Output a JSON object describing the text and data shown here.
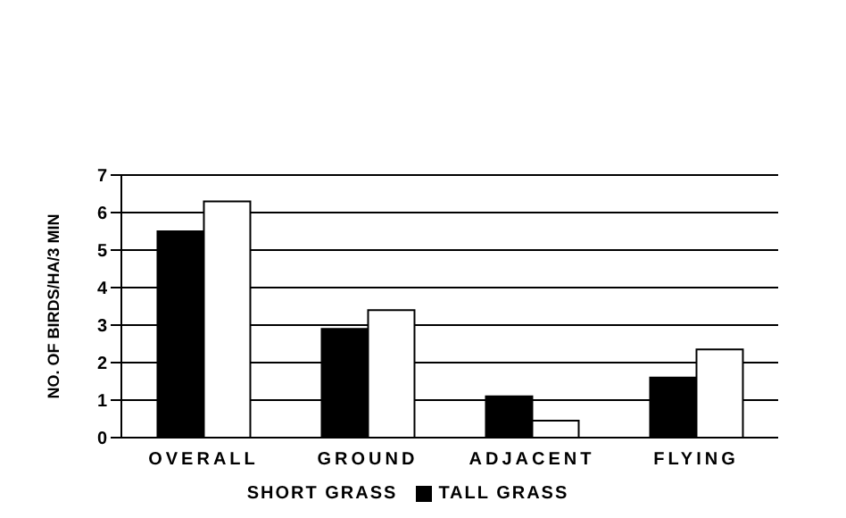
{
  "chart_data": {
    "type": "bar",
    "ylabel": "NO. OF BIRDS/HA/3 MIN",
    "categories": [
      "OVERALL",
      "GROUND",
      "ADJACENT",
      "FLYING"
    ],
    "series": [
      {
        "name": "TALL GRASS",
        "color": "#000000",
        "values": [
          5.5,
          2.9,
          1.1,
          1.6
        ]
      },
      {
        "name": "SHORT GRASS",
        "color": "#ffffff",
        "values": [
          6.3,
          3.4,
          0.45,
          2.35
        ]
      }
    ],
    "ylim": [
      0,
      7
    ],
    "yticks": [
      0,
      1,
      2,
      3,
      4,
      5,
      6,
      7
    ],
    "grid": "y",
    "legend": "bottom"
  }
}
